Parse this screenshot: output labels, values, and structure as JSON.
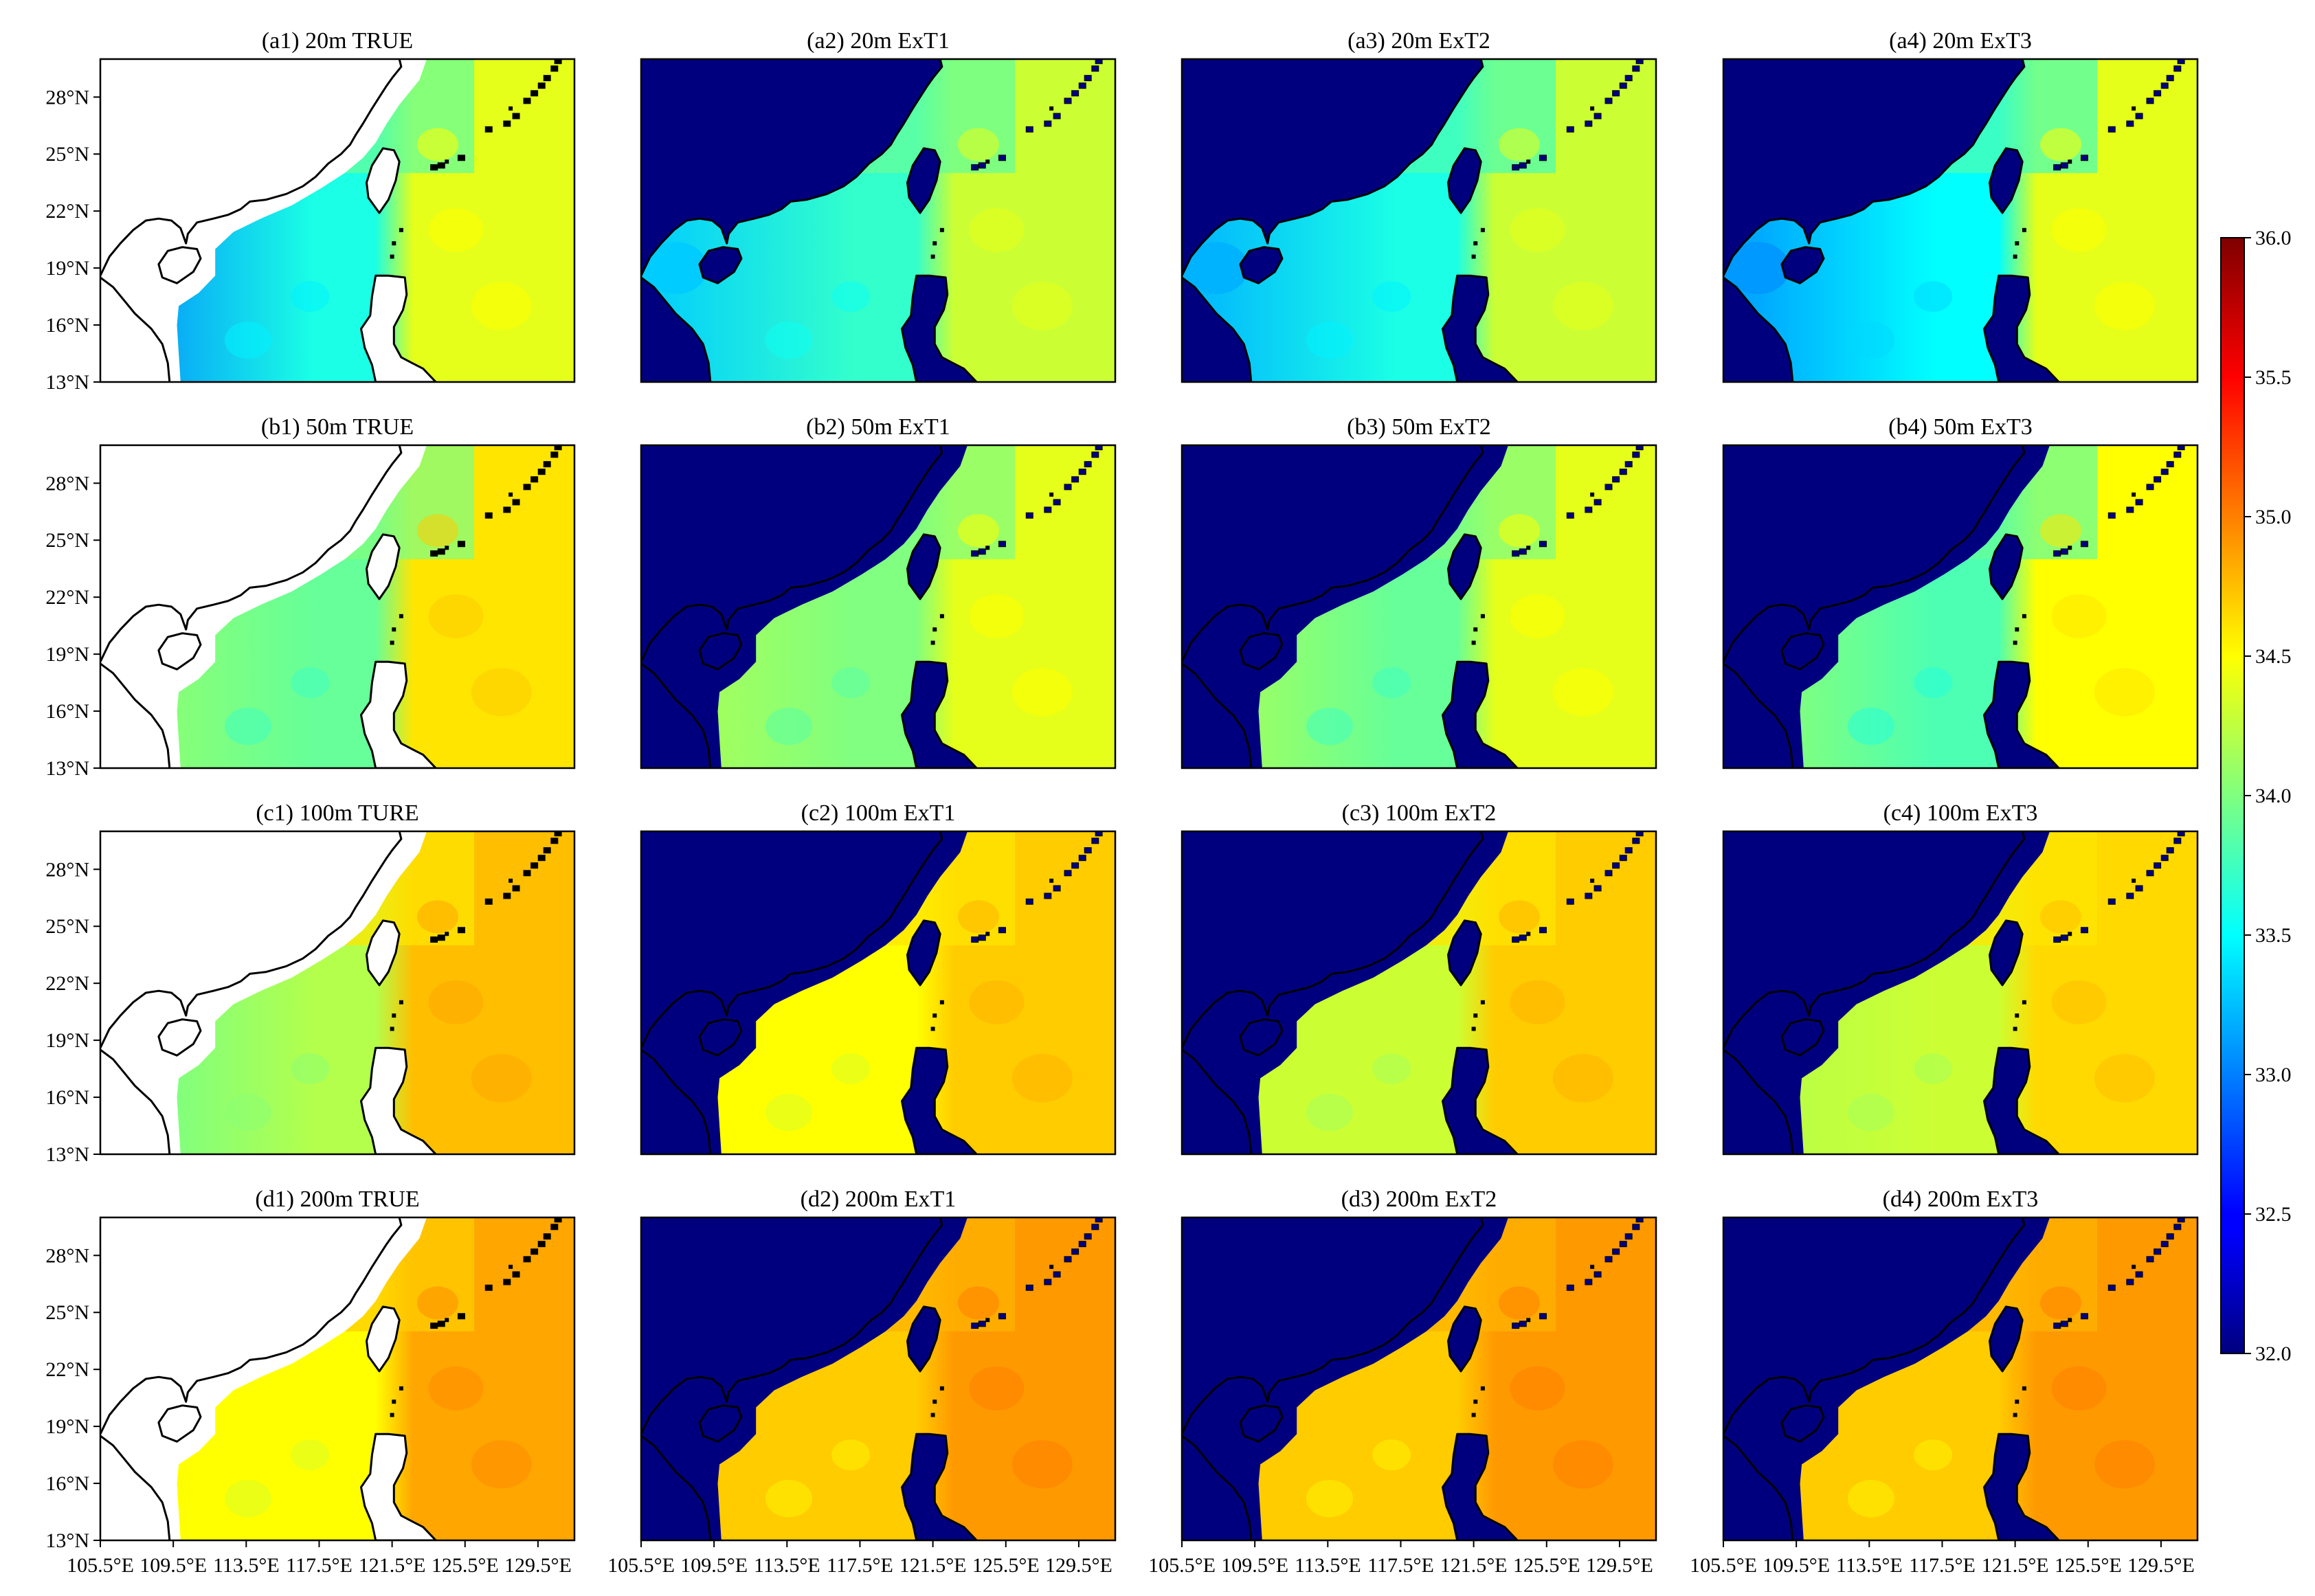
{
  "chart_data": {
    "type": "heatmap",
    "layout": "4x4 small multiples",
    "panels": [
      {
        "title": "(a1) 20m TRUE",
        "depth": "20m",
        "source": "TRUE",
        "land": "white",
        "shallow": "white",
        "scs_value": 33.6,
        "coast_value": 33.0,
        "east_value": 34.4,
        "gulf_value": 32.8,
        "north_value": 33.9
      },
      {
        "title": "(a2) 20m ExT1",
        "depth": "20m",
        "source": "ExT1",
        "land": "fill",
        "shallow": "data",
        "scs_value": 33.7,
        "coast_value": 33.3,
        "east_value": 34.3,
        "gulf_value": 33.3,
        "north_value": 33.9
      },
      {
        "title": "(a3) 20m ExT2",
        "depth": "20m",
        "source": "ExT2",
        "land": "fill",
        "shallow": "data",
        "scs_value": 33.6,
        "coast_value": 33.2,
        "east_value": 34.3,
        "gulf_value": 33.2,
        "north_value": 33.8
      },
      {
        "title": "(a4) 20m ExT3",
        "depth": "20m",
        "source": "ExT3",
        "land": "fill",
        "shallow": "data",
        "scs_value": 33.5,
        "coast_value": 33.1,
        "east_value": 34.4,
        "gulf_value": 33.1,
        "north_value": 33.8
      },
      {
        "title": "(b1) 50m TRUE",
        "depth": "50m",
        "source": "TRUE",
        "land": "white",
        "shallow": "white",
        "scs_value": 33.9,
        "coast_value": 34.1,
        "east_value": 34.6,
        "gulf_value": 33.3,
        "north_value": 34.0
      },
      {
        "title": "(b2) 50m ExT1",
        "depth": "50m",
        "source": "ExT1",
        "land": "fill",
        "shallow": "fill",
        "scs_value": 34.0,
        "coast_value": 34.2,
        "east_value": 34.4,
        "gulf_value": 33.4,
        "north_value": 34.0
      },
      {
        "title": "(b3) 50m ExT2",
        "depth": "50m",
        "source": "ExT2",
        "land": "fill",
        "shallow": "fill",
        "scs_value": 33.9,
        "coast_value": 34.2,
        "east_value": 34.4,
        "gulf_value": 33.4,
        "north_value": 34.0
      },
      {
        "title": "(b4) 50m ExT3",
        "depth": "50m",
        "source": "ExT3",
        "land": "fill",
        "shallow": "fill",
        "scs_value": 33.8,
        "coast_value": 34.1,
        "east_value": 34.5,
        "gulf_value": 33.4,
        "north_value": 33.9
      },
      {
        "title": "(c1) 100m TURE",
        "depth": "100m",
        "source": "TRUE",
        "land": "white",
        "shallow": "white",
        "scs_value": 34.2,
        "coast_value": 33.9,
        "east_value": 34.75,
        "gulf_value": 34.2,
        "north_value": 34.6
      },
      {
        "title": "(c2) 100m ExT1",
        "depth": "100m",
        "source": "ExT1",
        "land": "fill",
        "shallow": "fill",
        "scs_value": 34.5,
        "coast_value": 34.5,
        "east_value": 34.7,
        "gulf_value": 34.5,
        "north_value": 34.6
      },
      {
        "title": "(c3) 100m ExT2",
        "depth": "100m",
        "source": "ExT2",
        "land": "fill",
        "shallow": "fill",
        "scs_value": 34.3,
        "coast_value": 34.3,
        "east_value": 34.7,
        "gulf_value": 34.3,
        "north_value": 34.6
      },
      {
        "title": "(c4) 100m ExT3",
        "depth": "100m",
        "source": "ExT3",
        "land": "fill",
        "shallow": "fill",
        "scs_value": 34.3,
        "coast_value": 34.2,
        "east_value": 34.65,
        "gulf_value": 34.3,
        "north_value": 34.6
      },
      {
        "title": "(d1) 200m TRUE",
        "depth": "200m",
        "source": "TRUE",
        "land": "white",
        "shallow": "white",
        "scs_value": 34.5,
        "coast_value": 34.5,
        "east_value": 34.85,
        "gulf_value": 34.5,
        "north_value": 34.7
      },
      {
        "title": "(d2) 200m ExT1",
        "depth": "200m",
        "source": "ExT1",
        "land": "fill",
        "shallow": "fill",
        "scs_value": 34.7,
        "coast_value": 34.7,
        "east_value": 34.9,
        "gulf_value": 34.7,
        "north_value": 34.8
      },
      {
        "title": "(d3) 200m ExT2",
        "depth": "200m",
        "source": "ExT2",
        "land": "fill",
        "shallow": "fill",
        "scs_value": 34.7,
        "coast_value": 34.7,
        "east_value": 34.9,
        "gulf_value": 34.7,
        "north_value": 34.8
      },
      {
        "title": "(d4) 200m ExT3",
        "depth": "200m",
        "source": "ExT3",
        "land": "fill",
        "shallow": "fill",
        "scs_value": 34.7,
        "coast_value": 34.7,
        "east_value": 34.9,
        "gulf_value": 34.7,
        "north_value": 34.8
      }
    ],
    "x_axis": {
      "range": [
        105.5,
        131.5
      ],
      "ticks": [
        105.5,
        109.5,
        113.5,
        117.5,
        121.5,
        125.5,
        129.5
      ],
      "tick_labels": [
        "105.5°E",
        "109.5°E",
        "113.5°E",
        "117.5°E",
        "121.5°E",
        "125.5°E",
        "129.5°E"
      ]
    },
    "y_axis": {
      "range": [
        13,
        30
      ],
      "ticks": [
        13,
        16,
        19,
        22,
        25,
        28
      ],
      "tick_labels": [
        "13°N",
        "16°N",
        "19°N",
        "22°N",
        "25°N",
        "28°N"
      ]
    },
    "colorbar": {
      "min": 32.0,
      "max": 36.0,
      "colormap": "jet",
      "placement": "right",
      "ticks": [
        32.0,
        32.5,
        33.0,
        33.5,
        34.0,
        34.5,
        35.0,
        35.5,
        36.0
      ],
      "tick_labels": [
        "32.0",
        "32.5",
        "33.0",
        "33.5",
        "34.0",
        "34.5",
        "35.0",
        "35.5",
        "36.0"
      ]
    },
    "colors": {
      "land_fill": "#00007f",
      "true_land": "#ffffff",
      "coastline": "#000000"
    },
    "grid": false
  }
}
